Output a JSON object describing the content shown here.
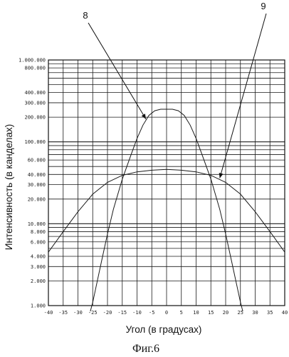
{
  "chart_data": {
    "type": "line",
    "xlabel": "Угол (в градусах)",
    "ylabel": "Интенсивность (в канделах)",
    "xlim": [
      -40,
      40
    ],
    "ylim": [
      1000,
      1000000
    ],
    "yscale": "log",
    "grid": true,
    "xticks": [
      -40,
      -35,
      -30,
      -25,
      -20,
      -15,
      -10,
      -5,
      0,
      5,
      10,
      15,
      20,
      25,
      30,
      35,
      40
    ],
    "ytick_values": [
      1000,
      2000,
      3000,
      4000,
      6000,
      8000,
      10000,
      20000,
      30000,
      40000,
      60000,
      100000,
      200000,
      300000,
      400000,
      800000,
      1000000
    ],
    "ytick_labels": [
      "1.000",
      "2.000",
      "3.000",
      "4.000",
      "6.000",
      "8.000",
      "10.000",
      "20.000",
      "30.000",
      "40.000",
      "60.000",
      "100.000",
      "200.000",
      "300.000",
      "400.000",
      "800.000",
      "1.000.000"
    ],
    "series": [
      {
        "name": "8",
        "x": [
          -26,
          -25,
          -22,
          -20,
          -18,
          -15,
          -12,
          -10,
          -8,
          -6,
          -4,
          -2,
          0,
          2,
          4,
          6,
          8,
          10,
          12,
          15,
          18,
          20,
          22,
          25,
          26
        ],
        "y": [
          800,
          1100,
          3500,
          7500,
          15000,
          35000,
          70000,
          110000,
          160000,
          210000,
          240000,
          250000,
          250000,
          250000,
          240000,
          210000,
          160000,
          110000,
          70000,
          35000,
          15000,
          7500,
          3500,
          1100,
          800
        ]
      },
      {
        "name": "9",
        "x": [
          -40,
          -35,
          -30,
          -25,
          -20,
          -15,
          -10,
          -5,
          0,
          5,
          10,
          15,
          20,
          25,
          30,
          35,
          40
        ],
        "y": [
          4500,
          8000,
          14000,
          23000,
          32000,
          39000,
          43000,
          45000,
          46000,
          45000,
          43000,
          39000,
          32000,
          23000,
          14000,
          8000,
          4500
        ]
      }
    ],
    "annotations": [
      {
        "text": "8",
        "series": "8",
        "point_x": -7,
        "point_y": 190000
      },
      {
        "text": "9",
        "series": "9",
        "point_x": 18,
        "point_y": 36000
      }
    ]
  },
  "caption": "Фиг.6"
}
